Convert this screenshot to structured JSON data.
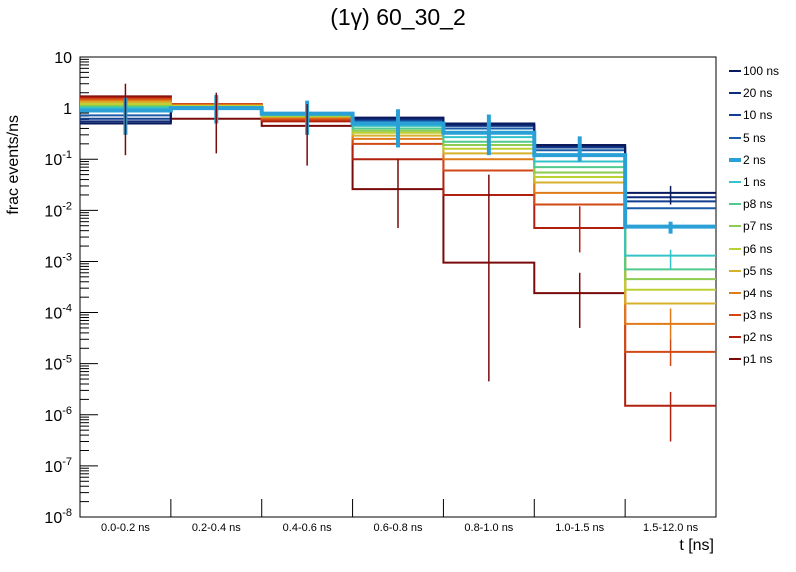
{
  "chart_data": {
    "type": "step-histogram",
    "title_prefix": "(1",
    "title_symbol": "γ",
    "title_suffix": ") 60_30_2",
    "xlabel": "t [ns]",
    "ylabel": "frac events/ns",
    "yscale": "log",
    "ylim": [
      1e-08,
      10
    ],
    "categories": [
      "0.0-0.2 ns",
      "0.2-0.4 ns",
      "0.4-0.6 ns",
      "0.6-0.8 ns",
      "0.8-1.0 ns",
      "1.0-1.5 ns",
      "1.5-12.0 ns"
    ],
    "y_tick_labels": [
      {
        "base": "10",
        "exp": "-8"
      },
      {
        "base": "10",
        "exp": "-7"
      },
      {
        "base": "10",
        "exp": "-6"
      },
      {
        "base": "10",
        "exp": "-5"
      },
      {
        "base": "10",
        "exp": "-4"
      },
      {
        "base": "10",
        "exp": "-3"
      },
      {
        "base": "10",
        "exp": "-2"
      },
      {
        "base": "10",
        "exp": "-1"
      },
      {
        "base": "1",
        "exp": ""
      },
      {
        "base": "10",
        "exp": ""
      }
    ],
    "series": [
      {
        "name": "100 ns",
        "color": "#0a1a5c",
        "width": 2,
        "values": [
          0.5,
          1.0,
          0.75,
          0.65,
          0.5,
          0.19,
          0.022
        ]
      },
      {
        "name": "20 ns",
        "color": "#0d2b78",
        "width": 2,
        "values": [
          0.55,
          1.0,
          0.75,
          0.62,
          0.47,
          0.18,
          0.018
        ]
      },
      {
        "name": "10 ns",
        "color": "#123f8f",
        "width": 2,
        "values": [
          0.62,
          1.0,
          0.76,
          0.6,
          0.45,
          0.17,
          0.015
        ]
      },
      {
        "name": "5 ns",
        "color": "#1a5ba8",
        "width": 2,
        "values": [
          0.72,
          1.0,
          0.76,
          0.57,
          0.4,
          0.15,
          0.011
        ]
      },
      {
        "name": "2 ns",
        "color": "#2aa0d6",
        "width": 4,
        "values": [
          0.9,
          1.0,
          0.78,
          0.5,
          0.33,
          0.12,
          0.0048
        ]
      },
      {
        "name": "1 ns",
        "color": "#33c3c8",
        "width": 2,
        "values": [
          1.0,
          1.0,
          0.75,
          0.45,
          0.27,
          0.09,
          0.0013
        ]
      },
      {
        "name": "p8 ns",
        "color": "#52c98e",
        "width": 2,
        "values": [
          1.05,
          1.05,
          0.73,
          0.4,
          0.22,
          0.07,
          0.0007
        ]
      },
      {
        "name": "p7 ns",
        "color": "#8ccc50",
        "width": 2,
        "values": [
          1.1,
          1.05,
          0.72,
          0.36,
          0.19,
          0.055,
          0.00045
        ]
      },
      {
        "name": "p6 ns",
        "color": "#bcd034",
        "width": 2,
        "values": [
          1.2,
          1.1,
          0.7,
          0.33,
          0.16,
          0.045,
          0.00028
        ]
      },
      {
        "name": "p5 ns",
        "color": "#d7b02c",
        "width": 2,
        "values": [
          1.3,
          1.1,
          0.68,
          0.29,
          0.13,
          0.035,
          0.00015
        ]
      },
      {
        "name": "p4 ns",
        "color": "#e07b1a",
        "width": 2,
        "values": [
          1.4,
          1.15,
          0.65,
          0.25,
          0.1,
          0.022,
          6e-05
        ]
      },
      {
        "name": "p3 ns",
        "color": "#d14a15",
        "width": 2,
        "values": [
          1.5,
          1.2,
          0.6,
          0.2,
          0.06,
          0.013,
          1.7e-05
        ]
      },
      {
        "name": "p2 ns",
        "color": "#b0200f",
        "width": 2,
        "values": [
          1.6,
          1.2,
          0.55,
          0.1,
          0.02,
          0.0045,
          1.5e-06
        ]
      },
      {
        "name": "p1 ns",
        "color": "#7a0a0a",
        "width": 2,
        "values": [
          1.7,
          0.62,
          0.45,
          0.026,
          0.00095,
          0.00024,
          null
        ]
      }
    ],
    "error_bars": [
      {
        "series": "100 ns",
        "bin": 6,
        "lo": 0.013,
        "hi": 0.03
      },
      {
        "series": "2 ns",
        "bin": 0,
        "lo": 0.3,
        "hi": 1.6
      },
      {
        "series": "2 ns",
        "bin": 1,
        "lo": 0.5,
        "hi": 1.8
      },
      {
        "series": "2 ns",
        "bin": 2,
        "lo": 0.3,
        "hi": 1.4
      },
      {
        "series": "2 ns",
        "bin": 3,
        "lo": 0.17,
        "hi": 0.95
      },
      {
        "series": "2 ns",
        "bin": 4,
        "lo": 0.12,
        "hi": 0.75
      },
      {
        "series": "2 ns",
        "bin": 5,
        "lo": 0.09,
        "hi": 0.28
      },
      {
        "series": "2 ns",
        "bin": 6,
        "lo": 0.0035,
        "hi": 0.006
      },
      {
        "series": "1 ns",
        "bin": 6,
        "lo": 0.0007,
        "hi": 0.0017
      },
      {
        "series": "p4 ns",
        "bin": 6,
        "lo": 3e-05,
        "hi": 0.00012
      },
      {
        "series": "p3 ns",
        "bin": 6,
        "lo": 9e-06,
        "hi": 3e-05
      },
      {
        "series": "p2 ns",
        "bin": 6,
        "lo": 3e-07,
        "hi": 2.8e-06
      },
      {
        "series": "p2 ns",
        "bin": 5,
        "lo": 0.0015,
        "hi": 0.012
      },
      {
        "series": "p1 ns",
        "bin": 0,
        "lo": 0.12,
        "hi": 3.0
      },
      {
        "series": "p1 ns",
        "bin": 1,
        "lo": 0.13,
        "hi": 2.0
      },
      {
        "series": "p1 ns",
        "bin": 2,
        "lo": 0.075,
        "hi": 1.2
      },
      {
        "series": "p1 ns",
        "bin": 3,
        "lo": 0.0045,
        "hi": 0.1
      },
      {
        "series": "p1 ns",
        "bin": 4,
        "lo": 4.5e-06,
        "hi": 0.05
      },
      {
        "series": "p1 ns",
        "bin": 5,
        "lo": 5e-05,
        "hi": 0.0006
      }
    ]
  }
}
